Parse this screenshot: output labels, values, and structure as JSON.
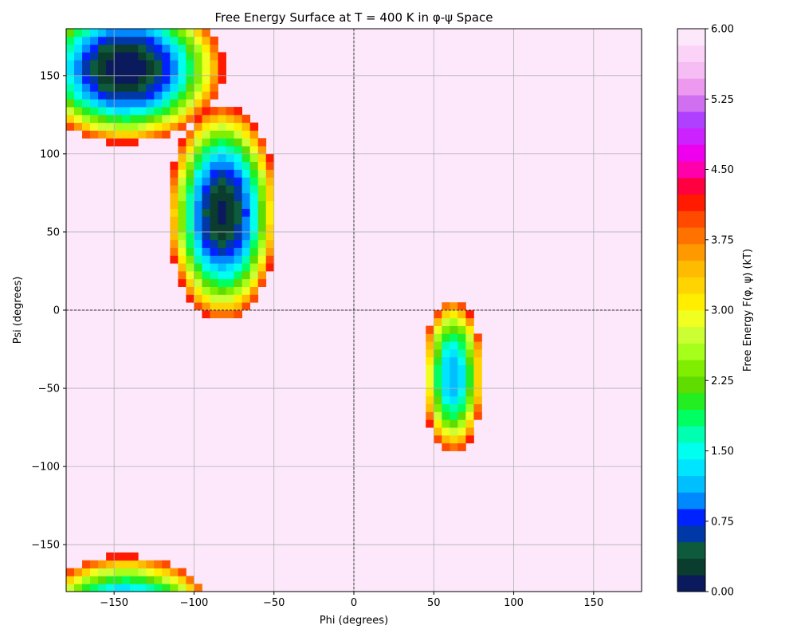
{
  "chart_data": {
    "type": "heatmap",
    "title": "Free Energy Surface at T = 400 K in φ-ψ Space",
    "xlabel": "Phi (degrees)",
    "ylabel": "Psi (degrees)",
    "xlim": [
      -180,
      180
    ],
    "ylim": [
      -180,
      180
    ],
    "x_ticks": [
      -150,
      -100,
      -50,
      0,
      50,
      100,
      150
    ],
    "x_tick_labels": [
      "−150",
      "−100",
      "−50",
      "0",
      "50",
      "100",
      "150"
    ],
    "y_ticks": [
      -150,
      -100,
      -50,
      0,
      50,
      100,
      150
    ],
    "y_tick_labels": [
      "−150",
      "−100",
      "−50",
      "0",
      "50",
      "100",
      "150"
    ],
    "grid": true,
    "zero_lines": true,
    "background_color": "#fde8fb",
    "colorbar": {
      "label": "Free Energy F(φ, ψ) (kT)",
      "vmin": 0.0,
      "vmax": 6.0,
      "ticks": [
        0.0,
        0.75,
        1.5,
        2.25,
        3.0,
        3.75,
        4.5,
        5.25,
        6.0
      ],
      "tick_labels": [
        "0.00",
        "0.75",
        "1.50",
        "2.25",
        "3.00",
        "3.75",
        "4.50",
        "5.25",
        "6.00"
      ],
      "levels": [
        {
          "from": 0.0,
          "to": 0.25,
          "color": "#0a1a5c"
        },
        {
          "from": 0.25,
          "to": 0.5,
          "color": "#0b3d2e"
        },
        {
          "from": 0.5,
          "to": 0.75,
          "color": "#0e5a3c"
        },
        {
          "from": 0.75,
          "to": 1.0,
          "color": "#0038a8"
        },
        {
          "from": 1.0,
          "to": 1.25,
          "color": "#0022ff"
        },
        {
          "from": 1.25,
          "to": 1.5,
          "color": "#0088ff"
        },
        {
          "from": 1.5,
          "to": 1.75,
          "color": "#00bfff"
        },
        {
          "from": 1.75,
          "to": 2.0,
          "color": "#00e5ff"
        },
        {
          "from": 2.0,
          "to": 2.25,
          "color": "#00ffee"
        },
        {
          "from": 2.25,
          "to": 2.5,
          "color": "#00ffb0"
        },
        {
          "from": 2.5,
          "to": 2.75,
          "color": "#00ff60"
        },
        {
          "from": 2.75,
          "to": 3.0,
          "color": "#22ee22"
        },
        {
          "from": 3.0,
          "to": 3.25,
          "color": "#5fdd00"
        },
        {
          "from": 3.25,
          "to": 3.5,
          "color": "#80ee00"
        },
        {
          "from": 3.5,
          "to": 3.75,
          "color": "#a6ff1a"
        },
        {
          "from": 3.75,
          "to": 4.0,
          "color": "#ccff33"
        },
        {
          "from": 4.0,
          "to": 4.25,
          "color": "#f0ff20"
        },
        {
          "from": 4.25,
          "to": 4.5,
          "color": "#ffee00"
        },
        {
          "from": 4.5,
          "to": 4.75,
          "color": "#ffd400"
        },
        {
          "from": 4.75,
          "to": 5.0,
          "color": "#ffbb00"
        },
        {
          "from": 5.0,
          "to": 5.25,
          "color": "#ff9900"
        },
        {
          "from": 5.25,
          "to": 5.5,
          "color": "#ff7200"
        },
        {
          "from": 5.5,
          "to": 5.75,
          "color": "#ff4a00"
        },
        {
          "from": 5.75,
          "to": 6.0,
          "color": "#ff1a00"
        }
      ],
      "upper_levels": [
        {
          "color": "#ff0040"
        },
        {
          "color": "#ff00aa"
        },
        {
          "color": "#ee00ee"
        },
        {
          "color": "#cc22ff"
        },
        {
          "color": "#b040ff"
        },
        {
          "color": "#d070f0"
        },
        {
          "color": "#ee99f0"
        },
        {
          "color": "#f6bdf4"
        },
        {
          "color": "#fbd3f8"
        },
        {
          "color": "#fde8fb"
        }
      ]
    },
    "basins": [
      {
        "phi": -143,
        "psi": 155,
        "min_energy": 0.0,
        "spread_phi": 28,
        "spread_psi": 22
      },
      {
        "phi": -82,
        "psi": 62,
        "min_energy": 0.2,
        "spread_phi": 16,
        "spread_psi": 32
      },
      {
        "phi": 62,
        "psi": -42,
        "min_energy": 1.5,
        "spread_phi": 10,
        "spread_psi": 26
      },
      {
        "phi": -140,
        "psi": -175,
        "min_energy": 4.0,
        "spread_phi": 22,
        "spread_psi": 10
      }
    ]
  }
}
